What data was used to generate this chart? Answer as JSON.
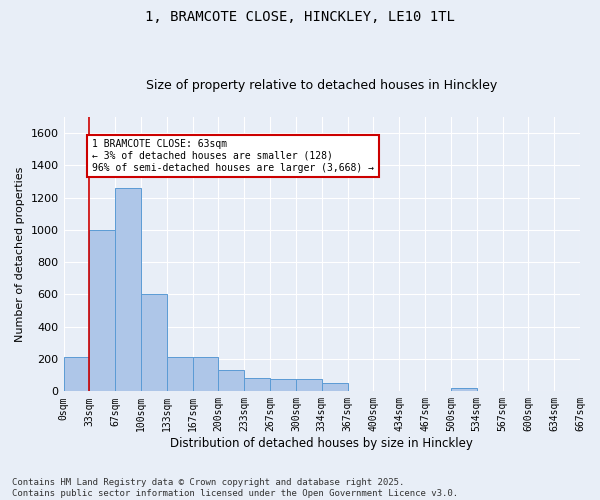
{
  "title": "1, BRAMCOTE CLOSE, HINCKLEY, LE10 1TL",
  "subtitle": "Size of property relative to detached houses in Hinckley",
  "xlabel": "Distribution of detached houses by size in Hinckley",
  "ylabel": "Number of detached properties",
  "bar_values": [
    215,
    1000,
    1260,
    600,
    215,
    215,
    130,
    80,
    75,
    75,
    50,
    0,
    0,
    0,
    0,
    20,
    0,
    0,
    0,
    0
  ],
  "bin_labels": [
    "0sqm",
    "33sqm",
    "67sqm",
    "100sqm",
    "133sqm",
    "167sqm",
    "200sqm",
    "233sqm",
    "267sqm",
    "300sqm",
    "334sqm",
    "367sqm",
    "400sqm",
    "434sqm",
    "467sqm",
    "500sqm",
    "534sqm",
    "567sqm",
    "600sqm",
    "634sqm",
    "667sqm"
  ],
  "bar_color": "#aec6e8",
  "bar_edge_color": "#5b9bd5",
  "background_color": "#e8eef7",
  "grid_color": "#ffffff",
  "property_line_x": 1,
  "annotation_text": "1 BRAMCOTE CLOSE: 63sqm\n← 3% of detached houses are smaller (128)\n96% of semi-detached houses are larger (3,668) →",
  "annotation_box_color": "#ffffff",
  "annotation_box_edge": "#cc0000",
  "property_line_color": "#cc0000",
  "ylim": [
    0,
    1700
  ],
  "yticks": [
    0,
    200,
    400,
    600,
    800,
    1000,
    1200,
    1400,
    1600
  ],
  "footnote": "Contains HM Land Registry data © Crown copyright and database right 2025.\nContains public sector information licensed under the Open Government Licence v3.0.",
  "title_fontsize": 10,
  "subtitle_fontsize": 9,
  "footnote_fontsize": 6.5
}
